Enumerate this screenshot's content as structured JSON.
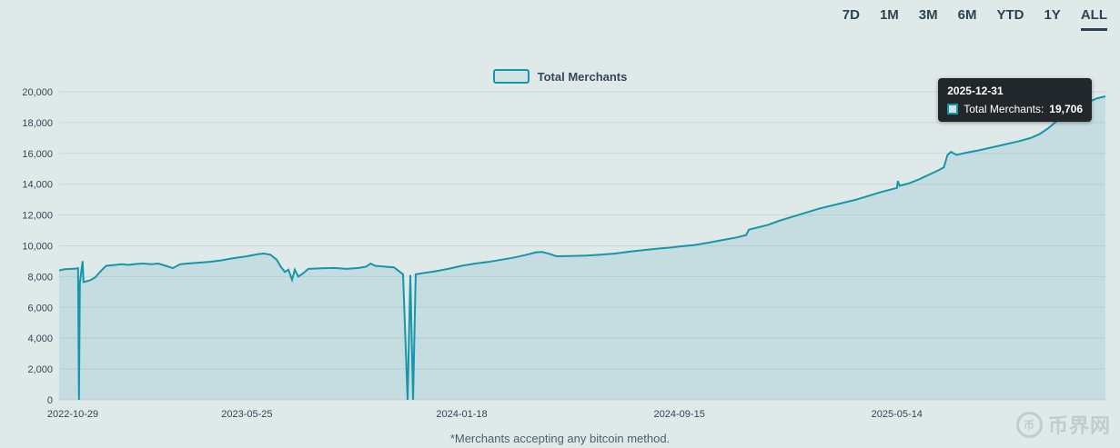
{
  "toolbar": {
    "ranges": [
      {
        "label": "7D",
        "active": false
      },
      {
        "label": "1M",
        "active": false
      },
      {
        "label": "3M",
        "active": false
      },
      {
        "label": "6M",
        "active": false
      },
      {
        "label": "YTD",
        "active": false
      },
      {
        "label": "1Y",
        "active": false
      },
      {
        "label": "ALL",
        "active": true
      }
    ]
  },
  "legend": {
    "label": "Total Merchants"
  },
  "tooltip": {
    "date": "2025-12-31",
    "series_text": "Total Merchants:",
    "value": "19,706"
  },
  "footnote": "*Merchants accepting any bitcoin method.",
  "watermark": {
    "icon_glyph": "币",
    "text": "币界网"
  },
  "colors": {
    "background": "#dfe9e8",
    "line": "#1796aa",
    "fill": "rgba(23,150,170,0.13)",
    "grid": "#c9d8d7",
    "axis_text": "#33475b",
    "tooltip_bg": "#22272c"
  },
  "chart_data": {
    "type": "area",
    "title": "",
    "xlabel": "",
    "ylabel": "",
    "ylim": [
      0,
      20000
    ],
    "grid": "horizontal",
    "legend_position": "top-center",
    "y_ticks": [
      0,
      2000,
      4000,
      6000,
      8000,
      10000,
      12000,
      14000,
      16000,
      18000,
      20000
    ],
    "x_ticks": [
      "2022-10-29",
      "2023-05-25",
      "2024-01-18",
      "2024-09-15",
      "2025-05-14"
    ],
    "series": [
      {
        "name": "Total Merchants",
        "points": [
          [
            "2022-10-29",
            8400
          ],
          [
            "2022-11-04",
            8480
          ],
          [
            "2022-11-16",
            8520
          ],
          [
            "2022-11-19",
            8550
          ],
          [
            "2022-11-20",
            0
          ],
          [
            "2022-11-21",
            7600
          ],
          [
            "2022-11-24",
            9000
          ],
          [
            "2022-11-25",
            7650
          ],
          [
            "2022-12-02",
            7750
          ],
          [
            "2022-12-08",
            7950
          ],
          [
            "2022-12-14",
            8350
          ],
          [
            "2022-12-20",
            8700
          ],
          [
            "2022-12-28",
            8750
          ],
          [
            "2023-01-06",
            8800
          ],
          [
            "2023-01-14",
            8760
          ],
          [
            "2023-01-22",
            8820
          ],
          [
            "2023-01-30",
            8850
          ],
          [
            "2023-02-08",
            8800
          ],
          [
            "2023-02-16",
            8850
          ],
          [
            "2023-02-24",
            8700
          ],
          [
            "2023-03-04",
            8550
          ],
          [
            "2023-03-12",
            8800
          ],
          [
            "2023-03-20",
            8850
          ],
          [
            "2023-04-01",
            8900
          ],
          [
            "2023-04-14",
            8960
          ],
          [
            "2023-04-26",
            9050
          ],
          [
            "2023-05-10",
            9200
          ],
          [
            "2023-05-25",
            9320
          ],
          [
            "2023-06-06",
            9450
          ],
          [
            "2023-06-13",
            9500
          ],
          [
            "2023-06-20",
            9420
          ],
          [
            "2023-06-27",
            9100
          ],
          [
            "2023-07-02",
            8600
          ],
          [
            "2023-07-06",
            8300
          ],
          [
            "2023-07-10",
            8450
          ],
          [
            "2023-07-14",
            7800
          ],
          [
            "2023-07-17",
            8450
          ],
          [
            "2023-07-21",
            8000
          ],
          [
            "2023-07-26",
            8200
          ],
          [
            "2023-08-01",
            8500
          ],
          [
            "2023-08-15",
            8540
          ],
          [
            "2023-08-30",
            8560
          ],
          [
            "2023-09-12",
            8500
          ],
          [
            "2023-09-26",
            8560
          ],
          [
            "2023-10-04",
            8650
          ],
          [
            "2023-10-09",
            8850
          ],
          [
            "2023-10-14",
            8700
          ],
          [
            "2023-10-24",
            8650
          ],
          [
            "2023-11-04",
            8600
          ],
          [
            "2023-11-14",
            8150
          ],
          [
            "2023-11-19",
            0
          ],
          [
            "2023-11-22",
            8100
          ],
          [
            "2023-11-25",
            0
          ],
          [
            "2023-11-28",
            8150
          ],
          [
            "2023-12-08",
            8250
          ],
          [
            "2023-12-20",
            8350
          ],
          [
            "2024-01-03",
            8500
          ],
          [
            "2024-01-18",
            8700
          ],
          [
            "2024-02-02",
            8850
          ],
          [
            "2024-02-16",
            8950
          ],
          [
            "2024-03-02",
            9100
          ],
          [
            "2024-03-17",
            9250
          ],
          [
            "2024-04-01",
            9450
          ],
          [
            "2024-04-09",
            9580
          ],
          [
            "2024-04-16",
            9600
          ],
          [
            "2024-04-24",
            9480
          ],
          [
            "2024-05-02",
            9320
          ],
          [
            "2024-05-18",
            9340
          ],
          [
            "2024-06-04",
            9360
          ],
          [
            "2024-06-20",
            9420
          ],
          [
            "2024-07-06",
            9500
          ],
          [
            "2024-07-22",
            9620
          ],
          [
            "2024-08-06",
            9720
          ],
          [
            "2024-08-22",
            9820
          ],
          [
            "2024-09-07",
            9900
          ],
          [
            "2024-09-15",
            9950
          ],
          [
            "2024-10-01",
            10050
          ],
          [
            "2024-10-17",
            10200
          ],
          [
            "2024-11-02",
            10380
          ],
          [
            "2024-11-18",
            10550
          ],
          [
            "2024-11-28",
            10700
          ],
          [
            "2024-12-01",
            11050
          ],
          [
            "2024-12-10",
            11180
          ],
          [
            "2024-12-22",
            11350
          ],
          [
            "2025-01-05",
            11650
          ],
          [
            "2025-01-19",
            11900
          ],
          [
            "2025-02-02",
            12150
          ],
          [
            "2025-02-16",
            12400
          ],
          [
            "2025-03-02",
            12600
          ],
          [
            "2025-03-16",
            12800
          ],
          [
            "2025-03-30",
            13000
          ],
          [
            "2025-04-13",
            13250
          ],
          [
            "2025-04-27",
            13500
          ],
          [
            "2025-05-10",
            13700
          ],
          [
            "2025-05-14",
            13750
          ],
          [
            "2025-05-15",
            14200
          ],
          [
            "2025-05-17",
            13900
          ],
          [
            "2025-05-27",
            14050
          ],
          [
            "2025-06-07",
            14300
          ],
          [
            "2025-06-18",
            14600
          ],
          [
            "2025-06-29",
            14900
          ],
          [
            "2025-07-05",
            15100
          ],
          [
            "2025-07-09",
            15900
          ],
          [
            "2025-07-13",
            16100
          ],
          [
            "2025-07-19",
            15900
          ],
          [
            "2025-07-30",
            16050
          ],
          [
            "2025-08-13",
            16200
          ],
          [
            "2025-08-28",
            16400
          ],
          [
            "2025-09-12",
            16600
          ],
          [
            "2025-09-27",
            16800
          ],
          [
            "2025-10-09",
            17000
          ],
          [
            "2025-10-19",
            17250
          ],
          [
            "2025-10-29",
            17650
          ],
          [
            "2025-11-08",
            18150
          ],
          [
            "2025-11-18",
            18550
          ],
          [
            "2025-11-27",
            18900
          ],
          [
            "2025-12-06",
            19150
          ],
          [
            "2025-12-14",
            19380
          ],
          [
            "2025-12-22",
            19580
          ],
          [
            "2025-12-31",
            19706
          ]
        ]
      }
    ]
  }
}
